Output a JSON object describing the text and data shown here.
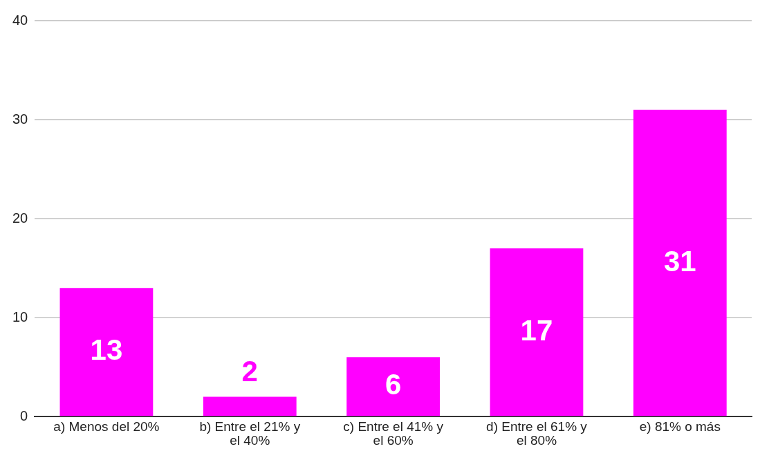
{
  "chart_data": {
    "type": "bar",
    "categories": [
      "a) Menos del 20%",
      "b) Entre el 21% y el 40%",
      "c) Entre el 41% y el 60%",
      "d) Entre el 61% y el 80%",
      "e) 81% o más"
    ],
    "values": [
      13,
      2,
      6,
      17,
      31
    ],
    "color": "#ff00ff",
    "ylim": [
      0,
      40
    ],
    "yticks": [
      0,
      10,
      20,
      30,
      40
    ],
    "grid": "y",
    "legend": false,
    "data_labels": true
  }
}
